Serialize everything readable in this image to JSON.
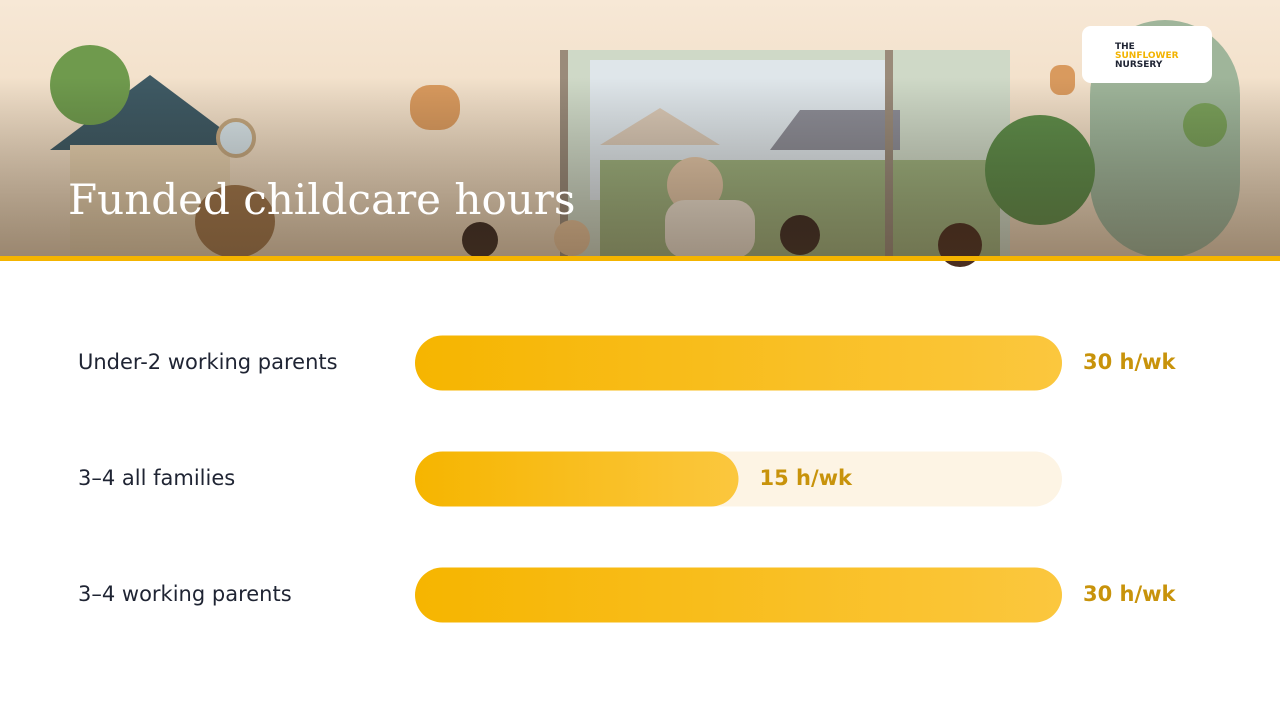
{
  "logo": {
    "lines": [
      "THE",
      "SUNFLOWER",
      "NURSERY"
    ]
  },
  "chart_data": {
    "type": "bar",
    "orientation": "horizontal",
    "title": "Funded childcare hours",
    "categories": [
      "Under-2 working parents",
      "3–4 all families",
      "3–4 working parents"
    ],
    "values": [
      30,
      15,
      30
    ],
    "value_labels": [
      "30 h/wk",
      "15 h/wk",
      "30 h/wk"
    ],
    "xlim": [
      0,
      30
    ],
    "color": "#f6b500"
  }
}
